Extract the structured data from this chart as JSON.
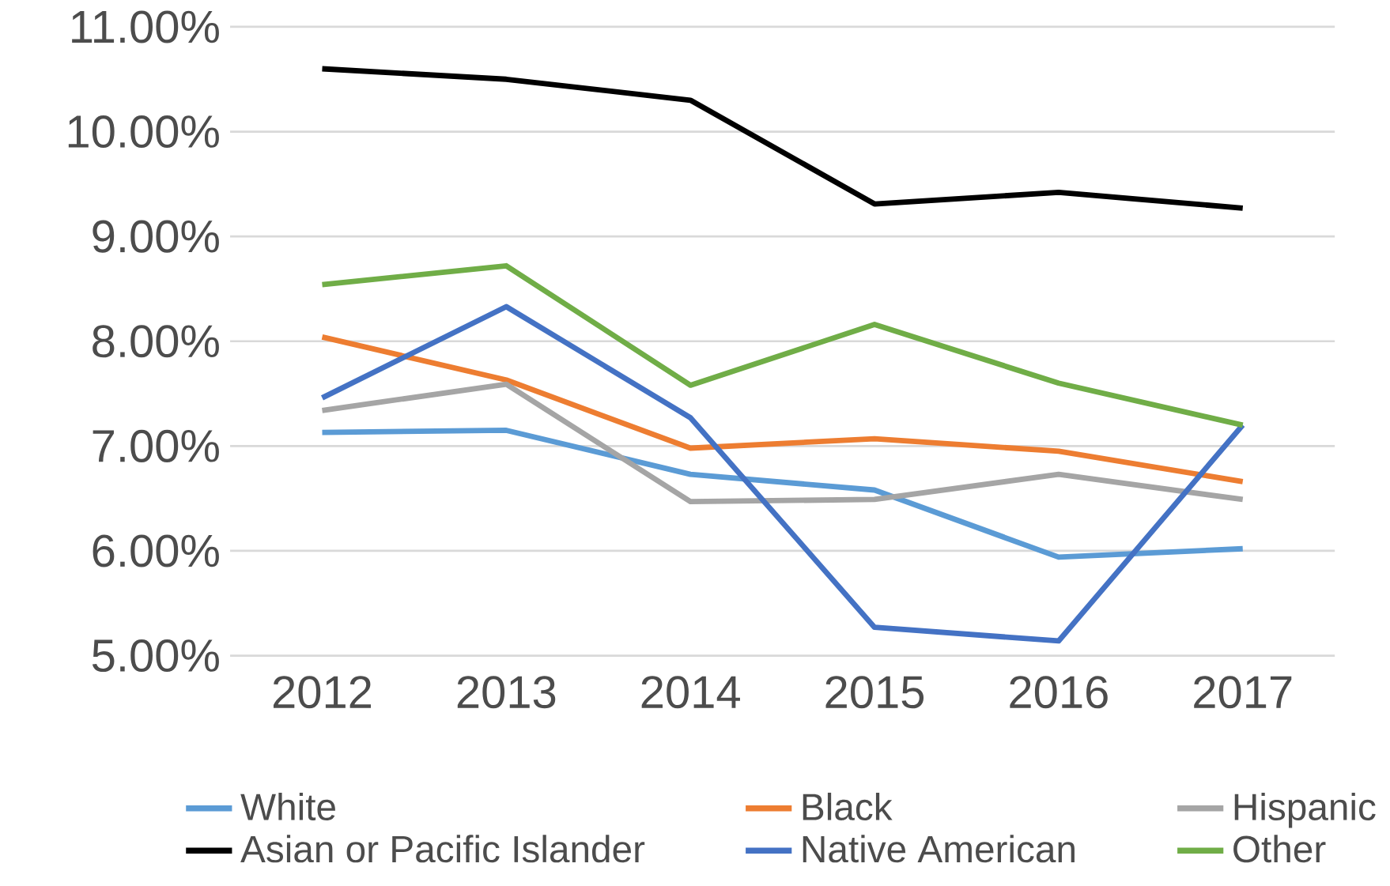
{
  "chart_data": {
    "type": "line",
    "categories": [
      "2012",
      "2013",
      "2014",
      "2015",
      "2016",
      "2017"
    ],
    "series": [
      {
        "name": "White",
        "color": "#5b9bd5",
        "values": [
          7.13,
          7.15,
          6.73,
          6.58,
          5.94,
          6.02
        ]
      },
      {
        "name": "Black",
        "color": "#ed7d31",
        "values": [
          8.04,
          7.63,
          6.98,
          7.07,
          6.95,
          6.66
        ]
      },
      {
        "name": "Hispanic",
        "color": "#a5a5a5",
        "values": [
          7.34,
          7.59,
          6.47,
          6.49,
          6.73,
          6.49
        ]
      },
      {
        "name": "Asian or Pacific Islander",
        "color": "#000000",
        "values": [
          10.6,
          10.5,
          10.3,
          9.31,
          9.42,
          9.27
        ]
      },
      {
        "name": "Native American",
        "color": "#4472c4",
        "values": [
          7.46,
          8.33,
          7.27,
          5.27,
          5.14,
          7.2
        ]
      },
      {
        "name": "Other",
        "color": "#70ad47",
        "values": [
          8.54,
          8.72,
          7.58,
          8.16,
          7.6,
          7.2
        ]
      }
    ],
    "ylim": [
      5,
      11
    ],
    "yticks": [
      {
        "value": 5,
        "label": "5.00%"
      },
      {
        "value": 6,
        "label": "6.00%"
      },
      {
        "value": 7,
        "label": "7.00%"
      },
      {
        "value": 8,
        "label": "8.00%"
      },
      {
        "value": 9,
        "label": "9.00%"
      },
      {
        "value": 10,
        "label": "10.00%"
      },
      {
        "value": 11,
        "label": "11.00%"
      }
    ],
    "grid": "y",
    "legend": "bottom",
    "marker": "none",
    "line_style": "solid"
  }
}
